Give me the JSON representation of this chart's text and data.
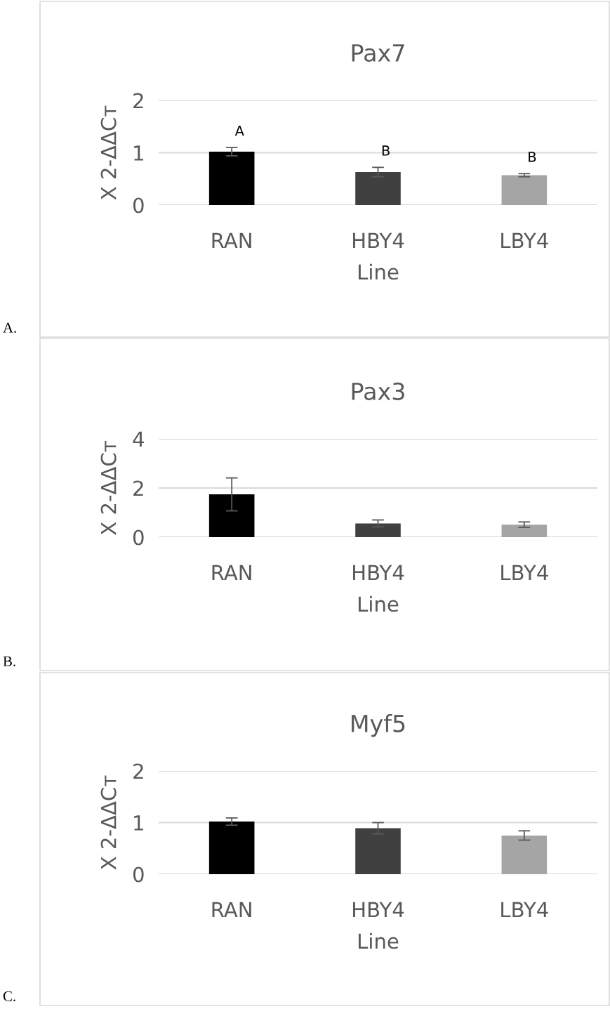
{
  "chart_data": [
    {
      "type": "bar",
      "title": "Pax7",
      "xlabel": "Line",
      "ylabel": "X 2-ΔΔCᴛ",
      "categories": [
        "RAN",
        "HBY4",
        "LBY4"
      ],
      "values": [
        1.02,
        0.63,
        0.57
      ],
      "errors": [
        0.08,
        0.09,
        0.03
      ],
      "colors": [
        "#000000",
        "#404040",
        "#a5a5a5"
      ],
      "ylim": [
        0,
        2
      ],
      "yticks": [
        0,
        1,
        2
      ],
      "grid": "y",
      "legend": false,
      "annotations": [
        "A.",
        "A",
        "B",
        "B"
      ]
    },
    {
      "type": "bar",
      "title": "Pax3",
      "xlabel": "Line",
      "ylabel": "X 2-ΔΔCᴛ",
      "categories": [
        "RAN",
        "HBY4",
        "LBY4"
      ],
      "values": [
        1.74,
        0.56,
        0.51
      ],
      "errors": [
        0.67,
        0.14,
        0.11
      ],
      "colors": [
        "#000000",
        "#404040",
        "#a5a5a5"
      ],
      "ylim": [
        0,
        4
      ],
      "yticks": [
        0,
        2,
        4
      ],
      "grid": "y",
      "legend": false,
      "annotations": [
        "B."
      ]
    },
    {
      "type": "bar",
      "title": "Myf5",
      "xlabel": "Line",
      "ylabel": "X 2-ΔΔCᴛ",
      "categories": [
        "RAN",
        "HBY4",
        "LBY4"
      ],
      "values": [
        1.02,
        0.89,
        0.75
      ],
      "errors": [
        0.07,
        0.11,
        0.09
      ],
      "colors": [
        "#000000",
        "#404040",
        "#a5a5a5"
      ],
      "ylim": [
        0,
        2
      ],
      "yticks": [
        0,
        1,
        2
      ],
      "grid": "y",
      "legend": false,
      "annotations": [
        "C."
      ]
    }
  ]
}
